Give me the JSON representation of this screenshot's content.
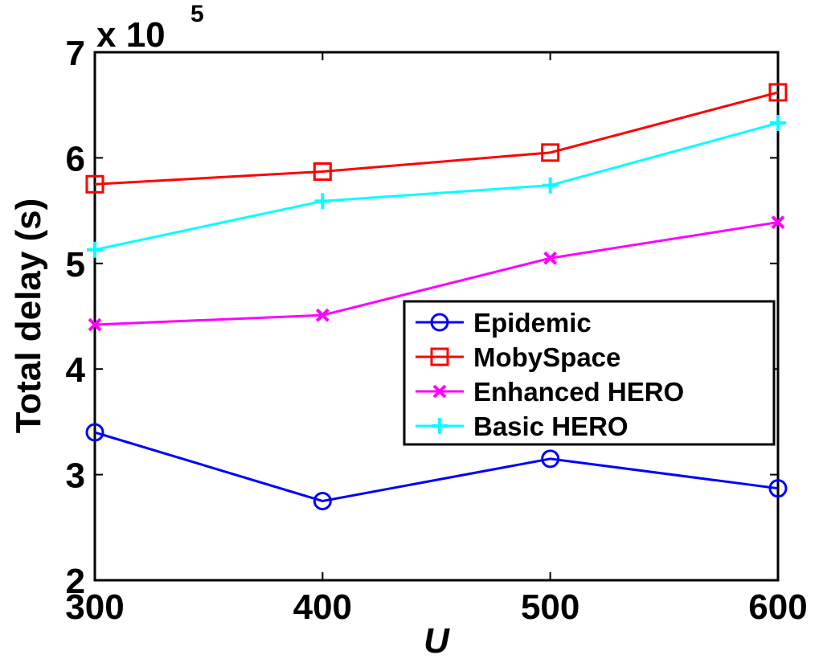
{
  "chart_data": {
    "type": "line",
    "title": "",
    "xlabel": "U",
    "ylabel": "Total delay (s)",
    "y_multiplier_label": "x 10",
    "y_multiplier_exponent": "5",
    "x": [
      300,
      400,
      500,
      600
    ],
    "xlim": [
      300,
      600
    ],
    "ylim": [
      2,
      7
    ],
    "x_ticks": [
      "300",
      "400",
      "500",
      "600"
    ],
    "y_ticks": [
      "2",
      "3",
      "4",
      "5",
      "6",
      "7"
    ],
    "grid": false,
    "legend_position": "center-right",
    "series": [
      {
        "name": "Epidemic",
        "values": [
          3.4,
          2.75,
          3.15,
          2.87
        ],
        "color": "#0000ff",
        "marker": "circle"
      },
      {
        "name": "MobySpace",
        "values": [
          5.75,
          5.87,
          6.05,
          6.62
        ],
        "color": "#ff0000",
        "marker": "square"
      },
      {
        "name": "Enhanced HERO",
        "values": [
          4.42,
          4.51,
          5.05,
          5.39
        ],
        "color": "#ff00ff",
        "marker": "x"
      },
      {
        "name": "Basic HERO",
        "values": [
          5.13,
          5.59,
          5.74,
          6.33
        ],
        "color": "#00ffff",
        "marker": "plus"
      }
    ]
  }
}
